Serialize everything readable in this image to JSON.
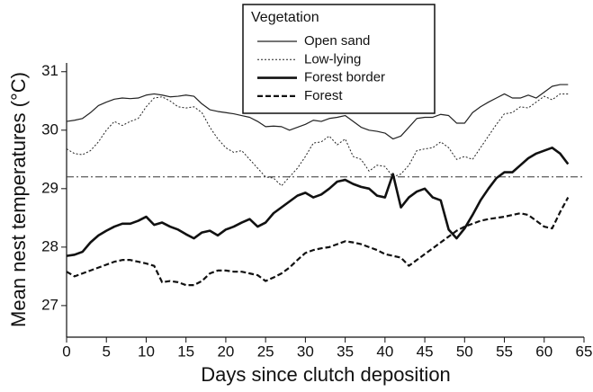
{
  "chart_data": {
    "type": "line",
    "xlabel": "Days since clutch deposition",
    "ylabel": "Mean nest temperatures (°C)",
    "legend_title": "Vegetation",
    "legend": "top-center",
    "x": [
      0,
      1,
      2,
      3,
      4,
      5,
      6,
      7,
      8,
      9,
      10,
      11,
      12,
      13,
      14,
      15,
      16,
      17,
      18,
      19,
      20,
      21,
      22,
      23,
      24,
      25,
      26,
      27,
      28,
      29,
      30,
      31,
      32,
      33,
      34,
      35,
      36,
      37,
      38,
      39,
      40,
      41,
      42,
      43,
      44,
      45,
      46,
      47,
      48,
      49,
      50,
      51,
      52,
      53,
      54,
      55,
      56,
      57,
      58,
      59,
      60,
      61,
      62,
      63
    ],
    "series": [
      {
        "name": "Open sand",
        "color": "#222222",
        "line_style": "solid",
        "line_width": 1.2,
        "values": [
          30.15,
          30.17,
          30.2,
          30.3,
          30.42,
          30.48,
          30.53,
          30.55,
          30.54,
          30.55,
          30.6,
          30.62,
          30.6,
          30.57,
          30.58,
          30.6,
          30.58,
          30.45,
          30.35,
          30.32,
          30.3,
          30.28,
          30.25,
          30.22,
          30.15,
          30.06,
          30.07,
          30.06,
          30.0,
          30.05,
          30.1,
          30.17,
          30.15,
          30.2,
          30.22,
          30.25,
          30.15,
          30.05,
          30.0,
          29.98,
          29.95,
          29.85,
          29.9,
          30.05,
          30.2,
          30.22,
          30.22,
          30.27,
          30.25,
          30.12,
          30.12,
          30.3,
          30.4,
          30.48,
          30.55,
          30.62,
          30.55,
          30.55,
          30.6,
          30.55,
          30.65,
          30.75,
          30.78,
          30.78
        ]
      },
      {
        "name": "Low-lying",
        "color": "#222222",
        "line_style": "dotted",
        "line_width": 1,
        "values": [
          29.68,
          29.6,
          29.58,
          29.65,
          29.8,
          30.0,
          30.15,
          30.08,
          30.15,
          30.2,
          30.4,
          30.55,
          30.57,
          30.5,
          30.4,
          30.38,
          30.4,
          30.3,
          30.05,
          29.85,
          29.7,
          29.62,
          29.65,
          29.5,
          29.35,
          29.2,
          29.18,
          29.05,
          29.2,
          29.35,
          29.55,
          29.78,
          29.8,
          29.9,
          29.75,
          29.85,
          29.55,
          29.5,
          29.3,
          29.4,
          29.38,
          29.2,
          29.25,
          29.4,
          29.65,
          29.68,
          29.7,
          29.8,
          29.7,
          29.5,
          29.55,
          29.5,
          29.7,
          29.9,
          30.1,
          30.28,
          30.3,
          30.4,
          30.38,
          30.48,
          30.58,
          30.52,
          30.62,
          30.62
        ]
      },
      {
        "name": "Forest border",
        "color": "#111111",
        "line_style": "solid",
        "line_width": 2.6,
        "values": [
          27.85,
          27.87,
          27.92,
          28.08,
          28.2,
          28.28,
          28.35,
          28.4,
          28.4,
          28.45,
          28.52,
          28.38,
          28.42,
          28.35,
          28.3,
          28.22,
          28.15,
          28.25,
          28.28,
          28.2,
          28.3,
          28.35,
          28.42,
          28.48,
          28.35,
          28.42,
          28.58,
          28.68,
          28.78,
          28.88,
          28.93,
          28.85,
          28.9,
          29.0,
          29.12,
          29.15,
          29.08,
          29.03,
          29.0,
          28.88,
          28.85,
          29.25,
          28.68,
          28.85,
          28.95,
          29.0,
          28.85,
          28.8,
          28.3,
          28.15,
          28.32,
          28.55,
          28.8,
          29.0,
          29.18,
          29.28,
          29.28,
          29.4,
          29.52,
          29.6,
          29.65,
          29.7,
          29.6,
          29.42
        ]
      },
      {
        "name": "Forest",
        "color": "#111111",
        "line_style": "dashed",
        "line_width": 2.2,
        "values": [
          27.58,
          27.5,
          27.55,
          27.6,
          27.65,
          27.7,
          27.75,
          27.78,
          27.78,
          27.75,
          27.72,
          27.68,
          27.4,
          27.42,
          27.4,
          27.35,
          27.35,
          27.42,
          27.55,
          27.6,
          27.6,
          27.58,
          27.58,
          27.55,
          27.52,
          27.42,
          27.48,
          27.55,
          27.65,
          27.78,
          27.9,
          27.95,
          27.98,
          28.0,
          28.05,
          28.1,
          28.08,
          28.05,
          28.0,
          27.95,
          27.88,
          27.85,
          27.82,
          27.68,
          27.78,
          27.88,
          27.98,
          28.08,
          28.18,
          28.28,
          28.35,
          28.4,
          28.45,
          28.48,
          28.5,
          28.52,
          28.55,
          28.58,
          28.55,
          28.45,
          28.35,
          28.32,
          28.6,
          28.85
        ]
      }
    ],
    "reference_line": {
      "value": 29.2,
      "line_style": "dashdot",
      "color": "#333333"
    },
    "xlim": [
      0,
      65
    ],
    "xticks": [
      0,
      5,
      10,
      15,
      20,
      25,
      30,
      35,
      40,
      45,
      50,
      55,
      60,
      65
    ],
    "ylim": [
      26.46,
      31.15
    ],
    "yticks": [
      27,
      28,
      29,
      30,
      31
    ],
    "grid": false
  }
}
